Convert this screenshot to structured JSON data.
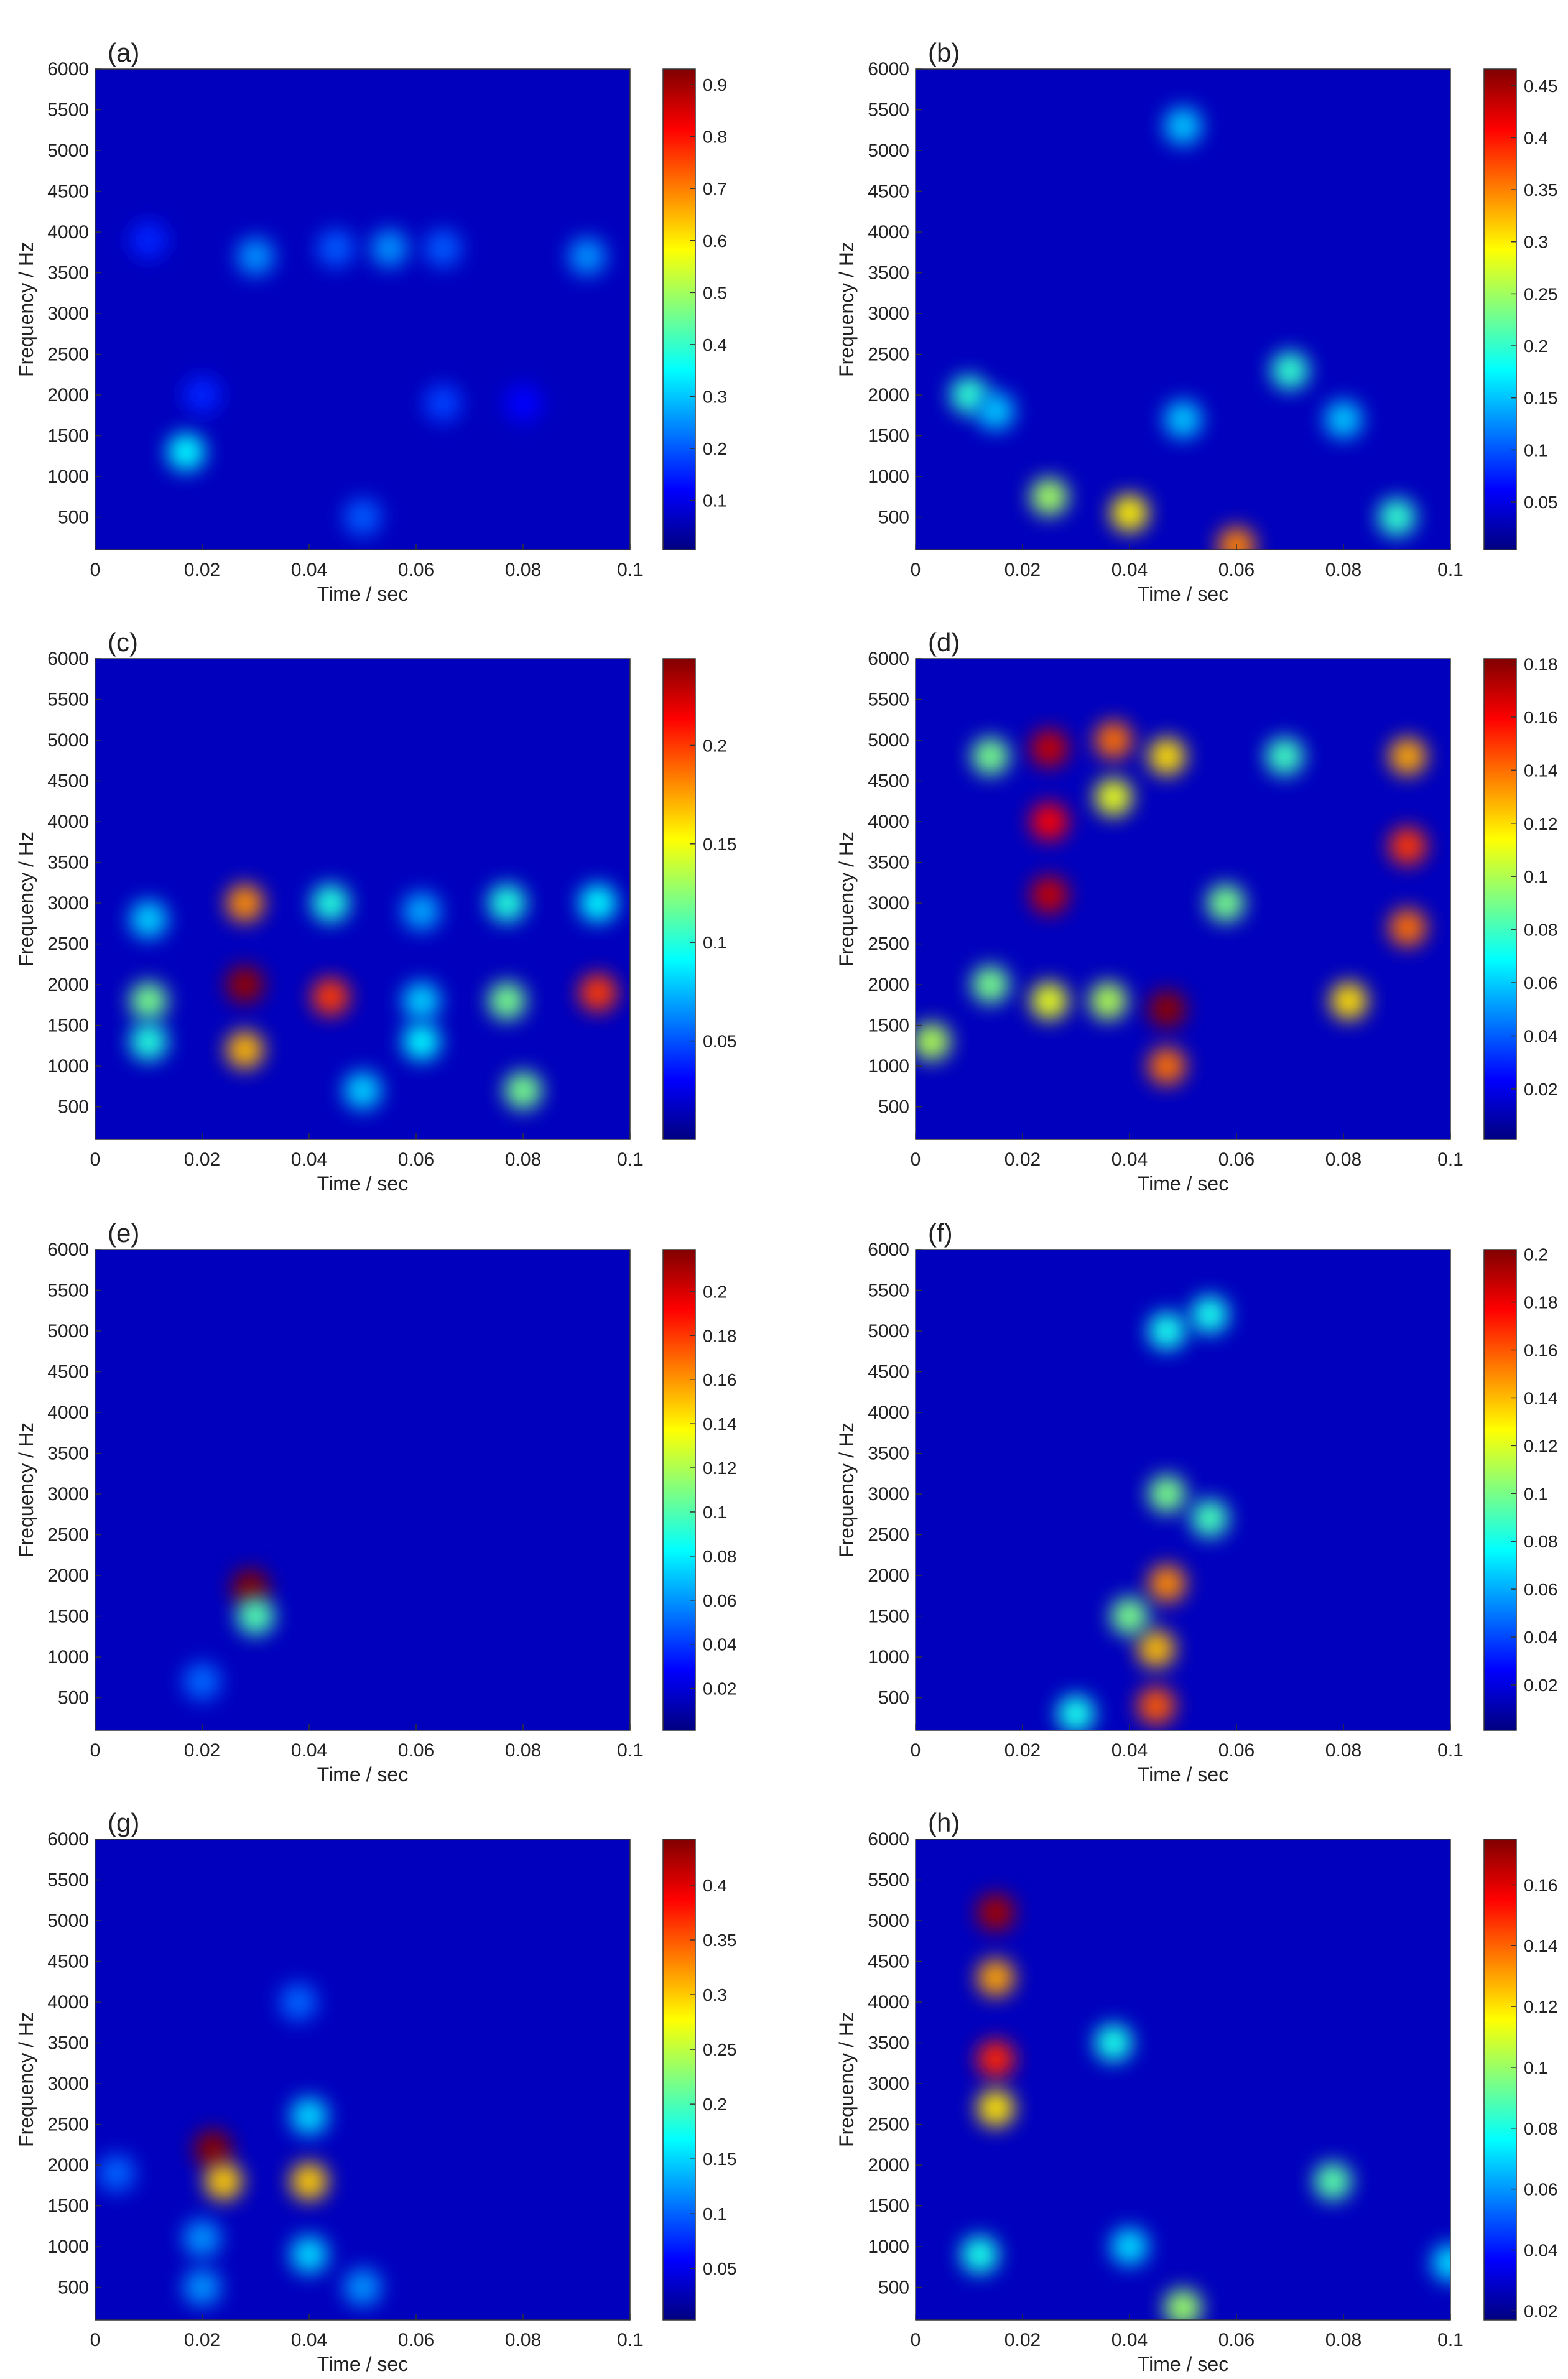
{
  "chart_data": [
    {
      "type": "heatmap",
      "label": "(a)",
      "xlabel": "Time / sec",
      "ylabel": "Frequency / Hz",
      "xlim": [
        0,
        0.1
      ],
      "xticks": [
        0,
        0.02,
        0.04,
        0.06,
        0.08,
        0.1
      ],
      "ylim": [
        100,
        6000
      ],
      "yticks": [
        500,
        1000,
        1500,
        2000,
        2500,
        3000,
        3500,
        4000,
        4500,
        5000,
        5500,
        6000
      ],
      "clim": [
        0.005,
        0.93
      ],
      "cticks": [
        0.1,
        0.2,
        0.3,
        0.4,
        0.5,
        0.6,
        0.7,
        0.8,
        0.9
      ],
      "colormap": "jet",
      "x": [
        0.017,
        0.03,
        0.045,
        0.055,
        0.065,
        0.092,
        0.05,
        0.02,
        0.065,
        0.08,
        0.01
      ],
      "y": [
        1300,
        3700,
        3800,
        3800,
        3800,
        3700,
        500,
        2000,
        1900,
        1900,
        3900
      ],
      "values": [
        0.35,
        0.25,
        0.2,
        0.25,
        0.2,
        0.25,
        0.2,
        0.15,
        0.18,
        0.12,
        0.15
      ]
    },
    {
      "type": "heatmap",
      "label": "(b)",
      "xlabel": "Time / sec",
      "ylabel": "Frequency / Hz",
      "xlim": [
        0,
        0.1
      ],
      "xticks": [
        0,
        0.02,
        0.04,
        0.06,
        0.08,
        0.1
      ],
      "ylim": [
        100,
        6000
      ],
      "yticks": [
        500,
        1000,
        1500,
        2000,
        2500,
        3000,
        3500,
        4000,
        4500,
        5000,
        5500,
        6000
      ],
      "clim": [
        0.004,
        0.466
      ],
      "cticks": [
        0.05,
        0.1,
        0.15,
        0.2,
        0.25,
        0.3,
        0.35,
        0.4,
        0.45
      ],
      "colormap": "jet",
      "x": [
        0.04,
        0.025,
        0.07,
        0.01,
        0.05,
        0.08,
        0.05,
        0.015,
        0.06,
        0.09
      ],
      "y": [
        550,
        750,
        2300,
        2000,
        1700,
        1700,
        5300,
        1800,
        150,
        500
      ],
      "values": [
        0.3,
        0.25,
        0.2,
        0.2,
        0.15,
        0.15,
        0.15,
        0.15,
        0.35,
        0.2
      ]
    },
    {
      "type": "heatmap",
      "label": "(c)",
      "xlabel": "Time / sec",
      "ylabel": "Frequency / Hz",
      "xlim": [
        0,
        0.1
      ],
      "xticks": [
        0,
        0.02,
        0.04,
        0.06,
        0.08,
        0.1
      ],
      "ylim": [
        100,
        6000
      ],
      "yticks": [
        500,
        1000,
        1500,
        2000,
        2500,
        3000,
        3500,
        4000,
        4500,
        5000,
        5500,
        6000
      ],
      "clim": [
        0,
        0.244
      ],
      "cticks": [
        0.05,
        0.1,
        0.15,
        0.2
      ],
      "colormap": "jet",
      "x": [
        0.028,
        0.028,
        0.028,
        0.044,
        0.044,
        0.01,
        0.01,
        0.01,
        0.061,
        0.061,
        0.061,
        0.077,
        0.077,
        0.094,
        0.094,
        0.08,
        0.05
      ],
      "y": [
        2000,
        3000,
        1200,
        1850,
        3000,
        1800,
        1300,
        2800,
        1300,
        1800,
        2900,
        1800,
        3000,
        1900,
        3000,
        700,
        700
      ],
      "values": [
        0.24,
        0.18,
        0.17,
        0.2,
        0.1,
        0.12,
        0.1,
        0.08,
        0.09,
        0.08,
        0.07,
        0.12,
        0.1,
        0.2,
        0.09,
        0.12,
        0.08
      ]
    },
    {
      "type": "heatmap",
      "label": "(d)",
      "xlabel": "Time / sec",
      "ylabel": "Frequency / Hz",
      "xlim": [
        0,
        0.1
      ],
      "xticks": [
        0,
        0.02,
        0.04,
        0.06,
        0.08,
        0.1
      ],
      "ylim": [
        100,
        6000
      ],
      "yticks": [
        500,
        1000,
        1500,
        2000,
        2500,
        3000,
        3500,
        4000,
        4500,
        5000,
        5500,
        6000
      ],
      "clim": [
        0.001,
        0.182
      ],
      "cticks": [
        0.02,
        0.04,
        0.06,
        0.08,
        0.1,
        0.12,
        0.14,
        0.16,
        0.18
      ],
      "colormap": "jet",
      "x": [
        0.025,
        0.025,
        0.025,
        0.047,
        0.047,
        0.037,
        0.037,
        0.047,
        0.092,
        0.092,
        0.092,
        0.081,
        0.014,
        0.014,
        0.003,
        0.058,
        0.069,
        0.025,
        0.036
      ],
      "y": [
        4900,
        3100,
        4000,
        1700,
        1000,
        5000,
        4300,
        4800,
        3700,
        2700,
        4800,
        1800,
        4800,
        2000,
        1300,
        3000,
        4800,
        1800,
        1800
      ],
      "values": [
        0.17,
        0.17,
        0.16,
        0.18,
        0.14,
        0.14,
        0.11,
        0.12,
        0.15,
        0.14,
        0.13,
        0.12,
        0.09,
        0.09,
        0.1,
        0.09,
        0.08,
        0.11,
        0.1
      ]
    },
    {
      "type": "heatmap",
      "label": "(e)",
      "xlabel": "Time / sec",
      "ylabel": "Frequency / Hz",
      "xlim": [
        0,
        0.1
      ],
      "xticks": [
        0,
        0.02,
        0.04,
        0.06,
        0.08,
        0.1
      ],
      "ylim": [
        100,
        6000
      ],
      "yticks": [
        500,
        1000,
        1500,
        2000,
        2500,
        3000,
        3500,
        4000,
        4500,
        5000,
        5500,
        6000
      ],
      "clim": [
        0.001,
        0.219
      ],
      "cticks": [
        0.02,
        0.04,
        0.06,
        0.08,
        0.1,
        0.12,
        0.14,
        0.16,
        0.18,
        0.2
      ],
      "colormap": "jet",
      "x": [
        0.029,
        0.03,
        0.02
      ],
      "y": [
        1850,
        1500,
        700
      ],
      "values": [
        0.219,
        0.1,
        0.05
      ]
    },
    {
      "type": "heatmap",
      "label": "(f)",
      "xlabel": "Time / sec",
      "ylabel": "Frequency / Hz",
      "xlim": [
        0,
        0.1
      ],
      "xticks": [
        0,
        0.02,
        0.04,
        0.06,
        0.08,
        0.1
      ],
      "ylim": [
        100,
        6000
      ],
      "yticks": [
        500,
        1000,
        1500,
        2000,
        2500,
        3000,
        3500,
        4000,
        4500,
        5000,
        5500,
        6000
      ],
      "clim": [
        0.001,
        0.202
      ],
      "cticks": [
        0.02,
        0.04,
        0.06,
        0.08,
        0.1,
        0.12,
        0.14,
        0.16,
        0.18,
        0.2
      ],
      "colormap": "jet",
      "x": [
        0.047,
        0.045,
        0.047,
        0.047,
        0.055,
        0.045,
        0.04,
        0.055,
        0.03
      ],
      "y": [
        1900,
        1100,
        3000,
        5000,
        5200,
        400,
        1500,
        2700,
        300
      ],
      "values": [
        0.15,
        0.14,
        0.1,
        0.08,
        0.08,
        0.16,
        0.1,
        0.09,
        0.08
      ]
    },
    {
      "type": "heatmap",
      "label": "(g)",
      "xlabel": "Time / sec",
      "ylabel": "Frequency / Hz",
      "xlim": [
        0,
        0.1
      ],
      "xticks": [
        0,
        0.02,
        0.04,
        0.06,
        0.08,
        0.1
      ],
      "ylim": [
        100,
        6000
      ],
      "yticks": [
        500,
        1000,
        1500,
        2000,
        2500,
        3000,
        3500,
        4000,
        4500,
        5000,
        5500,
        6000
      ],
      "clim": [
        0.003,
        0.442
      ],
      "cticks": [
        0.05,
        0.1,
        0.15,
        0.2,
        0.25,
        0.3,
        0.35,
        0.4
      ],
      "colormap": "jet",
      "x": [
        0.022,
        0.024,
        0.04,
        0.04,
        0.04,
        0.02,
        0.004,
        0.038,
        0.05,
        0.02
      ],
      "y": [
        2200,
        1800,
        1800,
        2600,
        900,
        1100,
        1900,
        4000,
        500,
        500
      ],
      "values": [
        0.44,
        0.3,
        0.3,
        0.15,
        0.15,
        0.12,
        0.1,
        0.1,
        0.12,
        0.12
      ]
    },
    {
      "type": "heatmap",
      "label": "(h)",
      "xlabel": "Time / sec",
      "ylabel": "Frequency / Hz",
      "xlim": [
        0,
        0.1
      ],
      "xticks": [
        0,
        0.02,
        0.04,
        0.06,
        0.08,
        0.1
      ],
      "ylim": [
        100,
        6000
      ],
      "yticks": [
        500,
        1000,
        1500,
        2000,
        2500,
        3000,
        3500,
        4000,
        4500,
        5000,
        5500,
        6000
      ],
      "clim": [
        0.017,
        0.175
      ],
      "cticks": [
        0.02,
        0.04,
        0.06,
        0.08,
        0.1,
        0.12,
        0.14,
        0.16
      ],
      "colormap": "jet",
      "x": [
        0.015,
        0.015,
        0.015,
        0.015,
        0.078,
        0.037,
        0.05,
        0.012,
        0.1,
        0.04
      ],
      "y": [
        5100,
        4300,
        3300,
        2700,
        1800,
        3500,
        250,
        900,
        800,
        1000
      ],
      "values": [
        0.17,
        0.13,
        0.15,
        0.12,
        0.09,
        0.08,
        0.1,
        0.08,
        0.07,
        0.07
      ]
    }
  ]
}
